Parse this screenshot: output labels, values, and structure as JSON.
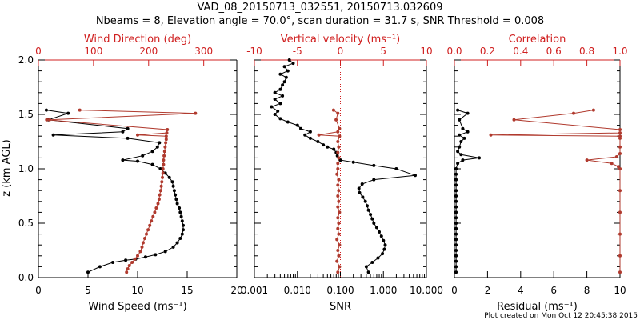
{
  "title_line1": "VAD_08_20150713_032551, 20150713.032609",
  "title_line2": "Nbeams = 8, Elevation angle = 70.0°, scan duration = 31.7 s, SNR Threshold = 0.008",
  "footer": "Plot created on Mon Oct 12 20:45:38 2015",
  "colors": {
    "black_series": "#000000",
    "red_series": "#b03a2e",
    "red_axis": "#d02020"
  },
  "ylabel": "z (km AGL)",
  "chart_data": [
    {
      "type": "line",
      "ylim": [
        0,
        2
      ],
      "yticks": [
        "0.0",
        "0.5",
        "1.0",
        "1.5",
        "2.0"
      ],
      "bottom_axis": {
        "label": "Wind Speed (ms⁻¹)",
        "lim": [
          0,
          20
        ],
        "ticks": [
          "0",
          "5",
          "10",
          "15",
          "20"
        ]
      },
      "top_axis": {
        "label": "Wind Direction (deg)",
        "lim": [
          0,
          360
        ],
        "ticks": [
          "0",
          "100",
          "200",
          "300"
        ]
      },
      "series": [
        {
          "axis": "bottom",
          "color": "black_series",
          "points": [
            [
              5.0,
              0.05
            ],
            [
              6.2,
              0.1
            ],
            [
              7.5,
              0.14
            ],
            [
              8.8,
              0.16
            ],
            [
              9.8,
              0.17
            ],
            [
              10.8,
              0.19
            ],
            [
              11.8,
              0.21
            ],
            [
              12.8,
              0.24
            ],
            [
              13.6,
              0.28
            ],
            [
              14.0,
              0.32
            ],
            [
              14.3,
              0.36
            ],
            [
              14.5,
              0.4
            ],
            [
              14.6,
              0.44
            ],
            [
              14.6,
              0.48
            ],
            [
              14.5,
              0.52
            ],
            [
              14.4,
              0.56
            ],
            [
              14.3,
              0.6
            ],
            [
              14.2,
              0.64
            ],
            [
              14.0,
              0.68
            ],
            [
              13.9,
              0.72
            ],
            [
              13.8,
              0.76
            ],
            [
              13.7,
              0.8
            ],
            [
              13.6,
              0.84
            ],
            [
              13.5,
              0.88
            ],
            [
              13.2,
              0.92
            ],
            [
              12.8,
              0.96
            ],
            [
              12.3,
              1.0
            ],
            [
              11.5,
              1.04
            ],
            [
              10.0,
              1.07
            ],
            [
              8.5,
              1.08
            ],
            [
              10.5,
              1.12
            ],
            [
              11.5,
              1.16
            ],
            [
              12.0,
              1.2
            ],
            [
              12.2,
              1.24
            ],
            [
              9.0,
              1.28
            ],
            [
              1.5,
              1.31
            ],
            [
              8.5,
              1.34
            ],
            [
              9.0,
              1.37
            ],
            [
              1.0,
              1.45
            ],
            [
              3.0,
              1.51
            ],
            [
              0.8,
              1.54
            ]
          ]
        },
        {
          "axis": "top",
          "color": "red_series",
          "points": [
            [
              160,
              0.05
            ],
            [
              162,
              0.08
            ],
            [
              165,
              0.11
            ],
            [
              170,
              0.14
            ],
            [
              175,
              0.17
            ],
            [
              180,
              0.2
            ],
            [
              185,
              0.24
            ],
            [
              188,
              0.28
            ],
            [
              190,
              0.32
            ],
            [
              193,
              0.36
            ],
            [
              196,
              0.4
            ],
            [
              199,
              0.44
            ],
            [
              202,
              0.48
            ],
            [
              205,
              0.52
            ],
            [
              208,
              0.56
            ],
            [
              211,
              0.6
            ],
            [
              214,
              0.64
            ],
            [
              217,
              0.68
            ],
            [
              219,
              0.72
            ],
            [
              220,
              0.76
            ],
            [
              222,
              0.8
            ],
            [
              223,
              0.84
            ],
            [
              224,
              0.88
            ],
            [
              225,
              0.92
            ],
            [
              226,
              0.96
            ],
            [
              226,
              1.0
            ],
            [
              227,
              1.04
            ],
            [
              227,
              1.08
            ],
            [
              228,
              1.12
            ],
            [
              229,
              1.16
            ],
            [
              230,
              1.2
            ],
            [
              231,
              1.24
            ],
            [
              232,
              1.27
            ],
            [
              232,
              1.3
            ],
            [
              180,
              1.31
            ],
            [
              233,
              1.33
            ],
            [
              234,
              1.36
            ],
            [
              15,
              1.45
            ],
            [
              20,
              1.45
            ],
            [
              285,
              1.51
            ],
            [
              75,
              1.54
            ]
          ]
        }
      ]
    },
    {
      "type": "line",
      "ylim": [
        0,
        2
      ],
      "bottom_axis": {
        "label": "SNR",
        "scale": "log",
        "lim": [
          0.001,
          10
        ],
        "ticks": [
          "0.001",
          "0.010",
          "0.100",
          "1.000",
          "10.000"
        ]
      },
      "top_axis": {
        "label": "Vertical velocity (ms⁻¹)",
        "lim": [
          -10,
          10
        ],
        "ticks": [
          "-10",
          "-5",
          "0",
          "5",
          "10"
        ]
      },
      "zero_line": true,
      "series": [
        {
          "axis": "bottom",
          "color": "black_series",
          "points": [
            [
              0.45,
              0.05
            ],
            [
              0.4,
              0.1
            ],
            [
              0.55,
              0.14
            ],
            [
              0.75,
              0.18
            ],
            [
              0.95,
              0.22
            ],
            [
              1.05,
              0.26
            ],
            [
              1.1,
              0.3
            ],
            [
              1.0,
              0.34
            ],
            [
              0.9,
              0.38
            ],
            [
              0.8,
              0.42
            ],
            [
              0.7,
              0.46
            ],
            [
              0.6,
              0.5
            ],
            [
              0.55,
              0.54
            ],
            [
              0.5,
              0.58
            ],
            [
              0.45,
              0.62
            ],
            [
              0.42,
              0.66
            ],
            [
              0.38,
              0.7
            ],
            [
              0.33,
              0.74
            ],
            [
              0.28,
              0.78
            ],
            [
              0.27,
              0.82
            ],
            [
              0.32,
              0.86
            ],
            [
              0.6,
              0.9
            ],
            [
              5.5,
              0.94
            ],
            [
              2.0,
              1.0
            ],
            [
              0.6,
              1.03
            ],
            [
              0.2,
              1.06
            ],
            [
              0.1,
              1.08
            ],
            [
              0.085,
              1.12
            ],
            [
              0.08,
              1.15
            ],
            [
              0.07,
              1.18
            ],
            [
              0.05,
              1.2
            ],
            [
              0.04,
              1.22
            ],
            [
              0.03,
              1.25
            ],
            [
              0.02,
              1.28
            ],
            [
              0.015,
              1.31
            ],
            [
              0.02,
              1.34
            ],
            [
              0.012,
              1.37
            ],
            [
              0.01,
              1.4
            ],
            [
              0.006,
              1.43
            ],
            [
              0.004,
              1.46
            ],
            [
              0.003,
              1.5
            ],
            [
              0.0035,
              1.53
            ],
            [
              0.0025,
              1.57
            ],
            [
              0.004,
              1.6
            ],
            [
              0.003,
              1.64
            ],
            [
              0.0045,
              1.67
            ],
            [
              0.003,
              1.7
            ],
            [
              0.004,
              1.73
            ],
            [
              0.0045,
              1.77
            ],
            [
              0.005,
              1.8
            ],
            [
              0.0055,
              1.84
            ],
            [
              0.004,
              1.87
            ],
            [
              0.006,
              1.9
            ],
            [
              0.005,
              1.94
            ],
            [
              0.008,
              1.97
            ],
            [
              0.0065,
              2.0
            ]
          ]
        },
        {
          "axis": "top",
          "color": "red_series",
          "points": [
            [
              -0.3,
              0.05
            ],
            [
              -0.1,
              0.1
            ],
            [
              -0.4,
              0.15
            ],
            [
              -0.2,
              0.2
            ],
            [
              -0.3,
              0.25
            ],
            [
              -0.1,
              0.3
            ],
            [
              -0.4,
              0.35
            ],
            [
              -0.2,
              0.4
            ],
            [
              -0.3,
              0.45
            ],
            [
              -0.2,
              0.5
            ],
            [
              -0.3,
              0.55
            ],
            [
              -0.1,
              0.6
            ],
            [
              -0.3,
              0.65
            ],
            [
              -0.2,
              0.7
            ],
            [
              -0.3,
              0.75
            ],
            [
              -0.2,
              0.8
            ],
            [
              -0.3,
              0.85
            ],
            [
              -0.2,
              0.9
            ],
            [
              -0.4,
              0.95
            ],
            [
              -0.3,
              1.0
            ],
            [
              -0.3,
              1.05
            ],
            [
              -0.2,
              1.1
            ],
            [
              -0.3,
              1.15
            ],
            [
              -0.2,
              1.2
            ],
            [
              -0.3,
              1.25
            ],
            [
              -0.1,
              1.3
            ],
            [
              -2.5,
              1.31
            ],
            [
              -0.3,
              1.34
            ],
            [
              -0.1,
              1.37
            ],
            [
              -0.5,
              1.45
            ],
            [
              -0.3,
              1.51
            ],
            [
              -0.8,
              1.54
            ]
          ]
        }
      ]
    },
    {
      "type": "line",
      "ylim": [
        0,
        2
      ],
      "bottom_axis": {
        "label": "Residual (ms⁻¹)",
        "lim": [
          0,
          10
        ],
        "ticks": [
          "0",
          "2",
          "4",
          "6",
          "8",
          "10"
        ]
      },
      "top_axis": {
        "label": "Correlation",
        "lim": [
          0,
          1
        ],
        "ticks": [
          "0.0",
          "0.2",
          "0.4",
          "0.6",
          "0.8",
          "1.0"
        ]
      },
      "series": [
        {
          "axis": "bottom",
          "color": "black_series",
          "points": [
            [
              0.1,
              0.05
            ],
            [
              0.1,
              0.1
            ],
            [
              0.1,
              0.15
            ],
            [
              0.1,
              0.2
            ],
            [
              0.1,
              0.25
            ],
            [
              0.1,
              0.3
            ],
            [
              0.1,
              0.35
            ],
            [
              0.1,
              0.4
            ],
            [
              0.1,
              0.45
            ],
            [
              0.1,
              0.5
            ],
            [
              0.1,
              0.55
            ],
            [
              0.1,
              0.6
            ],
            [
              0.1,
              0.65
            ],
            [
              0.1,
              0.7
            ],
            [
              0.1,
              0.75
            ],
            [
              0.1,
              0.8
            ],
            [
              0.1,
              0.85
            ],
            [
              0.1,
              0.9
            ],
            [
              0.1,
              0.95
            ],
            [
              0.1,
              1.0
            ],
            [
              0.2,
              1.05
            ],
            [
              0.5,
              1.08
            ],
            [
              1.5,
              1.1
            ],
            [
              0.4,
              1.13
            ],
            [
              0.2,
              1.16
            ],
            [
              0.3,
              1.2
            ],
            [
              0.4,
              1.25
            ],
            [
              0.6,
              1.28
            ],
            [
              0.3,
              1.31
            ],
            [
              0.8,
              1.34
            ],
            [
              0.5,
              1.37
            ],
            [
              0.3,
              1.45
            ],
            [
              0.8,
              1.51
            ],
            [
              0.2,
              1.54
            ]
          ]
        },
        {
          "axis": "top",
          "color": "red_series",
          "points": [
            [
              1.0,
              0.05
            ],
            [
              1.0,
              0.2
            ],
            [
              1.0,
              0.4
            ],
            [
              1.0,
              0.6
            ],
            [
              1.0,
              0.8
            ],
            [
              1.0,
              1.0
            ],
            [
              0.99,
              1.02
            ],
            [
              0.95,
              1.05
            ],
            [
              0.8,
              1.08
            ],
            [
              0.98,
              1.11
            ],
            [
              1.0,
              1.14
            ],
            [
              1.0,
              1.2
            ],
            [
              1.0,
              1.28
            ],
            [
              1.0,
              1.3
            ],
            [
              0.22,
              1.31
            ],
            [
              1.0,
              1.33
            ],
            [
              1.0,
              1.36
            ],
            [
              0.36,
              1.45
            ],
            [
              0.72,
              1.51
            ],
            [
              0.84,
              1.54
            ]
          ]
        }
      ]
    }
  ]
}
